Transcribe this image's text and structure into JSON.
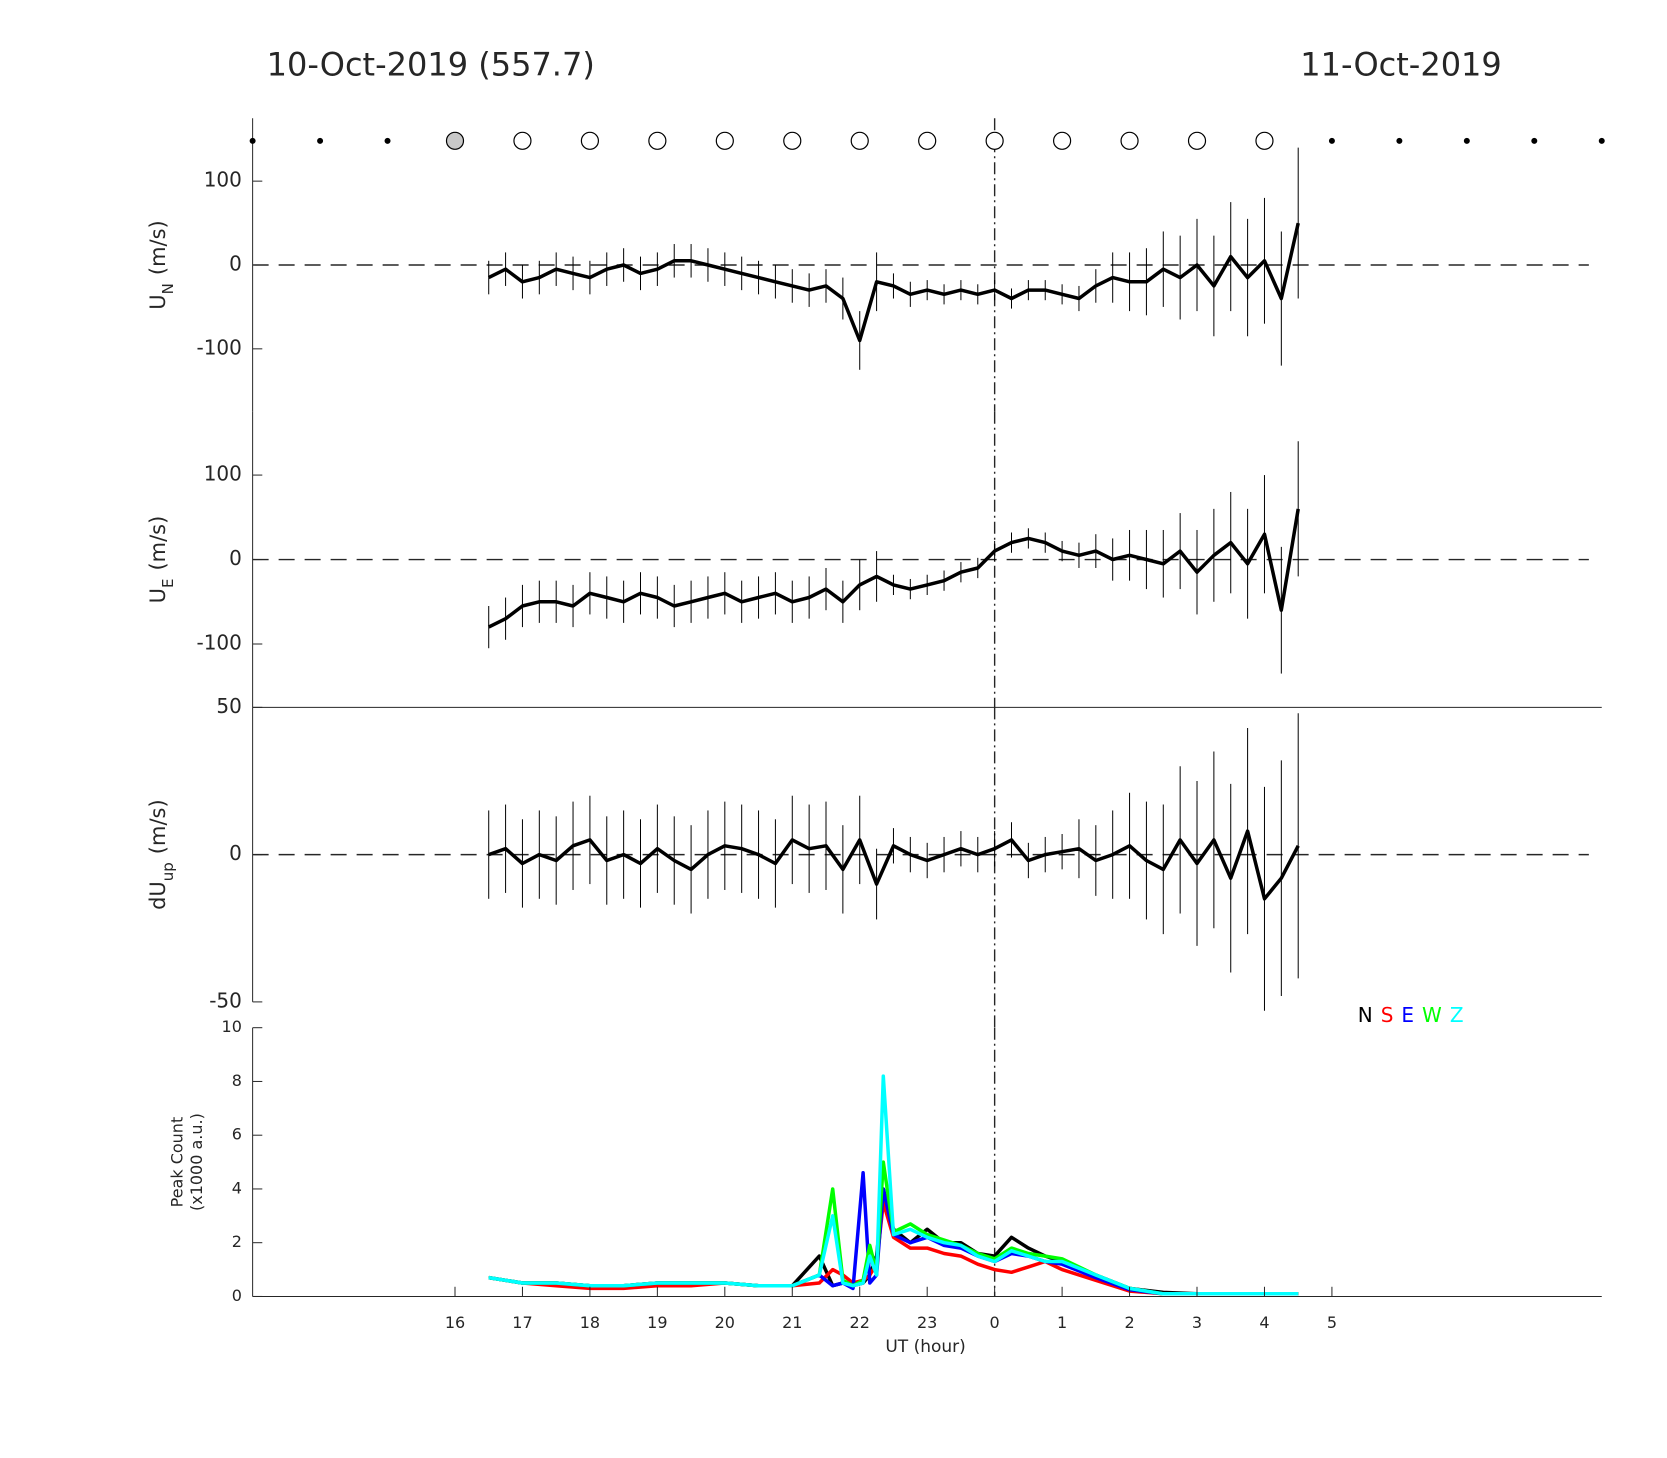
{
  "chart_data": [
    {
      "type": "errorbar",
      "title": "10-Oct-2019 (557.7)",
      "subtitle": "11-Oct-2019",
      "ylabel": "U",
      "ylabel_sub": "N",
      "ylabel_unit": "(m/s)",
      "xlim": [
        13,
        33
      ],
      "ylim": [
        -175,
        175
      ],
      "yticks": [
        -100,
        0,
        100
      ],
      "zero_line": true,
      "vline": 24,
      "x": [
        16.5,
        16.75,
        17,
        17.25,
        17.5,
        17.75,
        18,
        18.25,
        18.5,
        18.75,
        19,
        19.25,
        19.5,
        19.75,
        20,
        20.25,
        20.5,
        20.75,
        21,
        21.25,
        21.5,
        21.75,
        22,
        22.25,
        22.5,
        22.75,
        23,
        23.25,
        23.5,
        23.75,
        24,
        24.25,
        24.5,
        24.75,
        25,
        25.25,
        25.5,
        25.75,
        26,
        26.25,
        26.5,
        26.75,
        27,
        27.25,
        27.5,
        27.75,
        28,
        28.25,
        28.5
      ],
      "series": [
        {
          "color": "#000000",
          "values": [
            -15,
            -5,
            -20,
            -15,
            -5,
            -10,
            -15,
            -5,
            0,
            -10,
            -5,
            5,
            5,
            0,
            -5,
            -10,
            -15,
            -20,
            -25,
            -30,
            -25,
            -40,
            -90,
            -20,
            -25,
            -35,
            -30,
            -35,
            -30,
            -35,
            -30,
            -40,
            -30,
            -30,
            -35,
            -40,
            -25,
            -15,
            -20,
            -20,
            -5,
            -15,
            0,
            -25,
            10,
            -15,
            5,
            -40,
            50
          ],
          "errors": [
            20,
            20,
            20,
            20,
            20,
            20,
            20,
            20,
            20,
            20,
            20,
            20,
            20,
            20,
            20,
            20,
            20,
            20,
            20,
            20,
            20,
            25,
            35,
            35,
            15,
            15,
            12,
            12,
            12,
            12,
            12,
            12,
            12,
            12,
            12,
            15,
            20,
            30,
            35,
            40,
            45,
            50,
            55,
            60,
            65,
            70,
            75,
            80,
            90
          ]
        }
      ],
      "markers": {
        "x": [
          13,
          14,
          15,
          16,
          17,
          18,
          19,
          20,
          21,
          22,
          23,
          24,
          25,
          26,
          27,
          28,
          29,
          30,
          31,
          32,
          33
        ],
        "kind": [
          "dot",
          "dot",
          "dot",
          "filled",
          "open",
          "open",
          "open",
          "open",
          "open",
          "open",
          "open",
          "open",
          "open",
          "open",
          "open",
          "open",
          "dot",
          "dot",
          "dot",
          "dot",
          "dot"
        ]
      }
    },
    {
      "type": "errorbar",
      "ylabel": "U",
      "ylabel_sub": "E",
      "ylabel_unit": "(m/s)",
      "xlim": [
        13,
        33
      ],
      "ylim": [
        -175,
        175
      ],
      "yticks": [
        -100,
        0,
        100
      ],
      "zero_line": true,
      "vline": 24,
      "x": [
        16.5,
        16.75,
        17,
        17.25,
        17.5,
        17.75,
        18,
        18.25,
        18.5,
        18.75,
        19,
        19.25,
        19.5,
        19.75,
        20,
        20.25,
        20.5,
        20.75,
        21,
        21.25,
        21.5,
        21.75,
        22,
        22.25,
        22.5,
        22.75,
        23,
        23.25,
        23.5,
        23.75,
        24,
        24.25,
        24.5,
        24.75,
        25,
        25.25,
        25.5,
        25.75,
        26,
        26.25,
        26.5,
        26.75,
        27,
        27.25,
        27.5,
        27.75,
        28,
        28.25,
        28.5
      ],
      "series": [
        {
          "color": "#000000",
          "values": [
            -80,
            -70,
            -55,
            -50,
            -50,
            -55,
            -40,
            -45,
            -50,
            -40,
            -45,
            -55,
            -50,
            -45,
            -40,
            -50,
            -45,
            -40,
            -50,
            -45,
            -35,
            -50,
            -30,
            -20,
            -30,
            -35,
            -30,
            -25,
            -15,
            -10,
            10,
            20,
            25,
            20,
            10,
            5,
            10,
            0,
            5,
            0,
            -5,
            10,
            -15,
            5,
            20,
            -5,
            30,
            -60,
            60
          ],
          "errors": [
            25,
            25,
            25,
            25,
            25,
            25,
            25,
            25,
            25,
            25,
            25,
            25,
            25,
            25,
            25,
            25,
            25,
            25,
            25,
            25,
            25,
            25,
            30,
            30,
            12,
            12,
            12,
            12,
            12,
            12,
            12,
            12,
            12,
            12,
            12,
            15,
            20,
            25,
            30,
            35,
            40,
            45,
            50,
            55,
            60,
            65,
            70,
            75,
            80
          ]
        }
      ]
    },
    {
      "type": "errorbar",
      "ylabel": "dU",
      "ylabel_sub": "up",
      "ylabel_unit": "(m/s)",
      "xlim": [
        13,
        33
      ],
      "ylim": [
        -50,
        50
      ],
      "yticks": [
        -50,
        0,
        50
      ],
      "zero_line": true,
      "vline": 24,
      "x": [
        16.5,
        16.75,
        17,
        17.25,
        17.5,
        17.75,
        18,
        18.25,
        18.5,
        18.75,
        19,
        19.25,
        19.5,
        19.75,
        20,
        20.25,
        20.5,
        20.75,
        21,
        21.25,
        21.5,
        21.75,
        22,
        22.25,
        22.5,
        22.75,
        23,
        23.25,
        23.5,
        23.75,
        24,
        24.25,
        24.5,
        24.75,
        25,
        25.25,
        25.5,
        25.75,
        26,
        26.25,
        26.5,
        26.75,
        27,
        27.25,
        27.5,
        27.75,
        28,
        28.25,
        28.5
      ],
      "series": [
        {
          "color": "#000000",
          "values": [
            0,
            2,
            -3,
            0,
            -2,
            3,
            5,
            -2,
            0,
            -3,
            2,
            -2,
            -5,
            0,
            3,
            2,
            0,
            -3,
            5,
            2,
            3,
            -5,
            5,
            -10,
            3,
            0,
            -2,
            0,
            2,
            0,
            2,
            5,
            -2,
            0,
            1,
            2,
            -2,
            0,
            3,
            -2,
            -5,
            5,
            -3,
            5,
            -8,
            8,
            -15,
            -8,
            3
          ],
          "errors": [
            15,
            15,
            15,
            15,
            15,
            15,
            15,
            15,
            15,
            15,
            15,
            15,
            15,
            15,
            15,
            15,
            15,
            15,
            15,
            15,
            15,
            15,
            15,
            12,
            6,
            6,
            6,
            6,
            6,
            6,
            6,
            6,
            6,
            6,
            6,
            10,
            12,
            15,
            18,
            20,
            22,
            25,
            28,
            30,
            32,
            35,
            38,
            40,
            45
          ]
        }
      ]
    },
    {
      "type": "line",
      "ylabel": "Peak Count",
      "ylabel_unit": "(x1000 a.u.)",
      "xlabel": "UT (hour)",
      "xlim": [
        13,
        33
      ],
      "ylim": [
        0,
        10
      ],
      "yticks": [
        0,
        2,
        4,
        6,
        8,
        10
      ],
      "vline": 24,
      "xticks": [
        16,
        17,
        18,
        19,
        20,
        21,
        22,
        23,
        {
          "value": 24,
          "label": "0"
        },
        {
          "value": 25,
          "label": "1"
        },
        {
          "value": 26,
          "label": "2"
        },
        {
          "value": 27,
          "label": "3"
        },
        {
          "value": 28,
          "label": "4"
        },
        {
          "value": 29,
          "label": "5"
        }
      ],
      "x": [
        16.5,
        17,
        17.5,
        18,
        18.5,
        19,
        19.5,
        20,
        20.5,
        21,
        21.4,
        21.6,
        21.75,
        21.9,
        22.05,
        22.15,
        22.25,
        22.35,
        22.5,
        22.75,
        23,
        23.25,
        23.5,
        23.75,
        24,
        24.25,
        24.5,
        24.75,
        25,
        25.5,
        26,
        26.5,
        27,
        27.5,
        28,
        28.5
      ],
      "series": [
        {
          "name": "N",
          "color": "#000000",
          "values": [
            0.7,
            0.5,
            0.5,
            0.4,
            0.4,
            0.5,
            0.5,
            0.5,
            0.4,
            0.4,
            1.5,
            0.4,
            0.5,
            0.4,
            0.5,
            0.8,
            1.5,
            4.0,
            2.5,
            2.0,
            2.5,
            2.0,
            2.0,
            1.6,
            1.5,
            2.2,
            1.8,
            1.5,
            1.3,
            0.8,
            0.3,
            0.15,
            0.1,
            0.1,
            0.1,
            0.1
          ]
        },
        {
          "name": "S",
          "color": "#ff0000",
          "values": [
            0.7,
            0.5,
            0.4,
            0.3,
            0.3,
            0.4,
            0.4,
            0.5,
            0.4,
            0.4,
            0.5,
            1.0,
            0.8,
            0.5,
            0.6,
            0.8,
            1.2,
            3.5,
            2.2,
            1.8,
            1.8,
            1.6,
            1.5,
            1.2,
            1.0,
            0.9,
            1.1,
            1.3,
            1.0,
            0.6,
            0.2,
            0.1,
            0.1,
            0.1,
            0.1,
            0.1
          ]
        },
        {
          "name": "E",
          "color": "#0000ff",
          "values": [
            0.7,
            0.5,
            0.5,
            0.4,
            0.4,
            0.5,
            0.5,
            0.5,
            0.4,
            0.4,
            0.8,
            0.4,
            0.5,
            0.3,
            4.6,
            0.5,
            0.8,
            4.0,
            2.3,
            2.0,
            2.2,
            1.9,
            1.8,
            1.5,
            1.3,
            1.6,
            1.5,
            1.3,
            1.2,
            0.7,
            0.25,
            0.1,
            0.1,
            0.1,
            0.1,
            0.1
          ]
        },
        {
          "name": "W",
          "color": "#00ff00",
          "values": [
            0.7,
            0.5,
            0.5,
            0.4,
            0.4,
            0.5,
            0.5,
            0.5,
            0.4,
            0.4,
            0.8,
            4.0,
            0.6,
            0.4,
            0.6,
            1.9,
            0.9,
            5.0,
            2.4,
            2.7,
            2.3,
            2.1,
            1.9,
            1.6,
            1.4,
            1.8,
            1.6,
            1.5,
            1.4,
            0.8,
            0.3,
            0.1,
            0.1,
            0.1,
            0.1,
            0.1
          ]
        },
        {
          "name": "Z",
          "color": "#00ffff",
          "values": [
            0.7,
            0.5,
            0.5,
            0.4,
            0.4,
            0.5,
            0.5,
            0.5,
            0.4,
            0.4,
            0.8,
            3.0,
            0.5,
            0.4,
            0.5,
            1.5,
            0.8,
            8.2,
            2.3,
            2.5,
            2.2,
            2.0,
            1.9,
            1.5,
            1.3,
            1.7,
            1.5,
            1.3,
            1.3,
            0.8,
            0.3,
            0.1,
            0.1,
            0.1,
            0.1,
            0.1
          ]
        }
      ]
    }
  ]
}
